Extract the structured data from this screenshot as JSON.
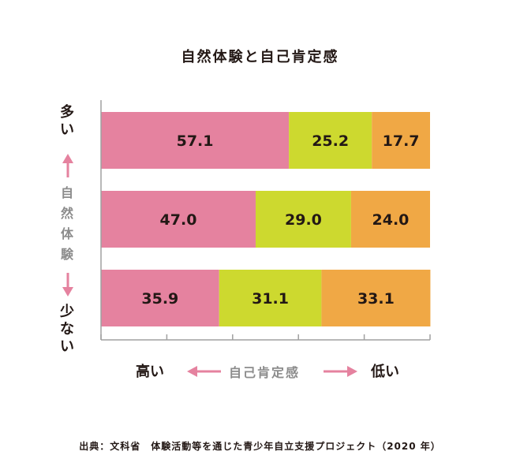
{
  "title": "自然体験と自己肯定感",
  "y_axis": {
    "top_label": "多い",
    "mid_label": "自然体験",
    "bottom_label": "少ない"
  },
  "x_axis": {
    "left_label": "高い",
    "mid_label": "自己肯定感",
    "right_label": "低い"
  },
  "source": "出典：文科省　体験活動等を通じた青少年自立支援プロジェクト（2020 年）",
  "colors": {
    "pink": "#e5829f",
    "green": "#cdd92f",
    "orange": "#f0a845",
    "arrow": "#e5829f",
    "axis": "#a0a0a0"
  },
  "chart_data": {
    "type": "bar",
    "orientation": "horizontal",
    "stacked": true,
    "categories": [
      "多い",
      "",
      "少ない"
    ],
    "series": [
      {
        "values": [
          57.1,
          47.0,
          35.9
        ],
        "color": "#e5829f"
      },
      {
        "values": [
          25.2,
          29.0,
          31.1
        ],
        "color": "#cdd92f"
      },
      {
        "values": [
          17.7,
          24.0,
          33.1
        ],
        "color": "#f0a845"
      }
    ],
    "labels": [
      [
        "57.1",
        "25.2",
        "17.7"
      ],
      [
        "47.0",
        "29.0",
        "24.0"
      ],
      [
        "35.9",
        "31.1",
        "33.1"
      ]
    ],
    "xlim": [
      0,
      100
    ]
  }
}
